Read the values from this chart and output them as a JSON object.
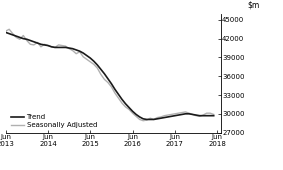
{
  "ylim": [
    27000,
    46000
  ],
  "yticks": [
    27000,
    30000,
    33000,
    36000,
    39000,
    42000,
    45000
  ],
  "ytick_labels": [
    "27000",
    "30000",
    "33000",
    "36000",
    "39000",
    "42000",
    "45000"
  ],
  "xlim": [
    0,
    61
  ],
  "xtick_positions": [
    0,
    12,
    24,
    36,
    48,
    60
  ],
  "xtick_labels": [
    "Jun\n2013",
    "Jun\n2014",
    "Jun\n2015",
    "Jun\n2016",
    "Jun\n2017",
    "Jun\n2018"
  ],
  "trend_color": "#1a1a1a",
  "sa_color": "#b0b0b0",
  "legend_items": [
    "Trend",
    "Seasonally Adjusted"
  ],
  "background_color": "#ffffff",
  "trend_data": [
    43000,
    42800,
    42600,
    42400,
    42200,
    42000,
    41900,
    41700,
    41500,
    41300,
    41100,
    41000,
    40900,
    40700,
    40600,
    40600,
    40600,
    40600,
    40500,
    40400,
    40200,
    40000,
    39700,
    39300,
    38900,
    38400,
    37800,
    37100,
    36400,
    35600,
    34800,
    33900,
    33100,
    32300,
    31600,
    31000,
    30400,
    29900,
    29500,
    29200,
    29100,
    29100,
    29100,
    29200,
    29300,
    29400,
    29500,
    29600,
    29700,
    29800,
    29900,
    30000,
    30000,
    29900,
    29800,
    29700,
    29700,
    29700,
    29700,
    29700
  ],
  "sa_data": [
    43200,
    43500,
    42800,
    42200,
    41900,
    42500,
    41700,
    41100,
    41000,
    41400,
    40700,
    41100,
    40900,
    40700,
    40600,
    41000,
    40900,
    40800,
    40400,
    40100,
    39600,
    39900,
    39100,
    38700,
    38300,
    37900,
    37300,
    36300,
    35500,
    35000,
    34300,
    33300,
    32500,
    31700,
    31100,
    30700,
    30100,
    29600,
    29100,
    28900,
    29000,
    29300,
    29100,
    29400,
    29500,
    29700,
    29800,
    29900,
    30000,
    30100,
    30200,
    30300,
    30100,
    29900,
    29700,
    29600,
    29800,
    30100,
    30100,
    29900
  ],
  "sa_lw": 1.0,
  "trend_lw": 1.2
}
